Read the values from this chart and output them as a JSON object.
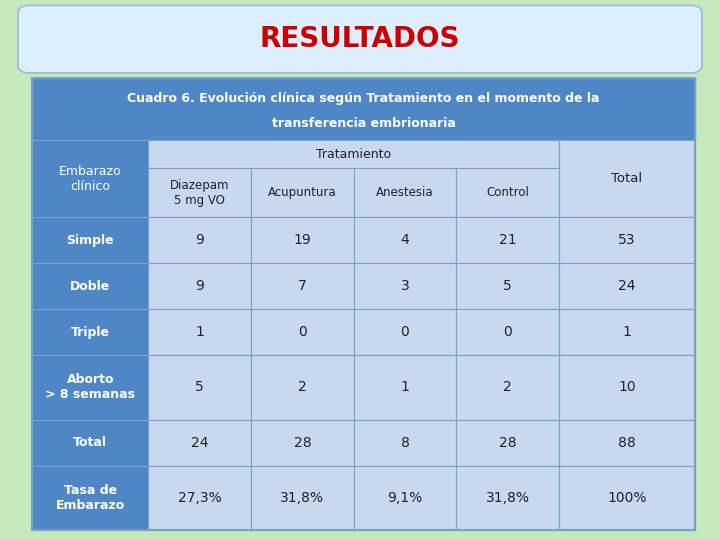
{
  "title": "RESULTADOS",
  "subtitle_line1": "Cuadro 6. Evolución clínica según Tratamiento en el momento de la",
  "subtitle_line2": "transferencia embrionaria",
  "header_row1_label": "Embarazo\nclínico",
  "header_tratamiento": "Tratamiento",
  "col_headers": [
    "Diazepam\n5 mg VO",
    "Acupuntura",
    "Anestesia",
    "Control",
    "Total"
  ],
  "row_labels": [
    "Simple",
    "Doble",
    "Triple",
    "Aborto\n> 8 semanas",
    "Total",
    "Tasa de\nEmbarazo"
  ],
  "data": [
    [
      "9",
      "19",
      "4",
      "21",
      "53"
    ],
    [
      "9",
      "7",
      "3",
      "5",
      "24"
    ],
    [
      "1",
      "0",
      "0",
      "0",
      "1"
    ],
    [
      "5",
      "2",
      "1",
      "2",
      "10"
    ],
    [
      "24",
      "28",
      "8",
      "28",
      "88"
    ],
    [
      "27,3%",
      "31,8%",
      "9,1%",
      "31,8%",
      "100%"
    ]
  ],
  "bg_color": "#c5e8bc",
  "title_bg_top": "#ddeeff",
  "title_bg_bot": "#aaccee",
  "title_color": "#cc0000",
  "table_header_bg": "#4f86c6",
  "table_header_text": "#ffffff",
  "row_label_bg": "#4f86c6",
  "row_label_text": "#ffffff",
  "data_cell_bg": "#c8d8ee",
  "total_col_bg": "#c8d8ee",
  "cell_text_color": "#222222",
  "border_color": "#7a9fc8",
  "title_box_edge": "#99bbdd",
  "subtitle_text_color": "#ffffff"
}
